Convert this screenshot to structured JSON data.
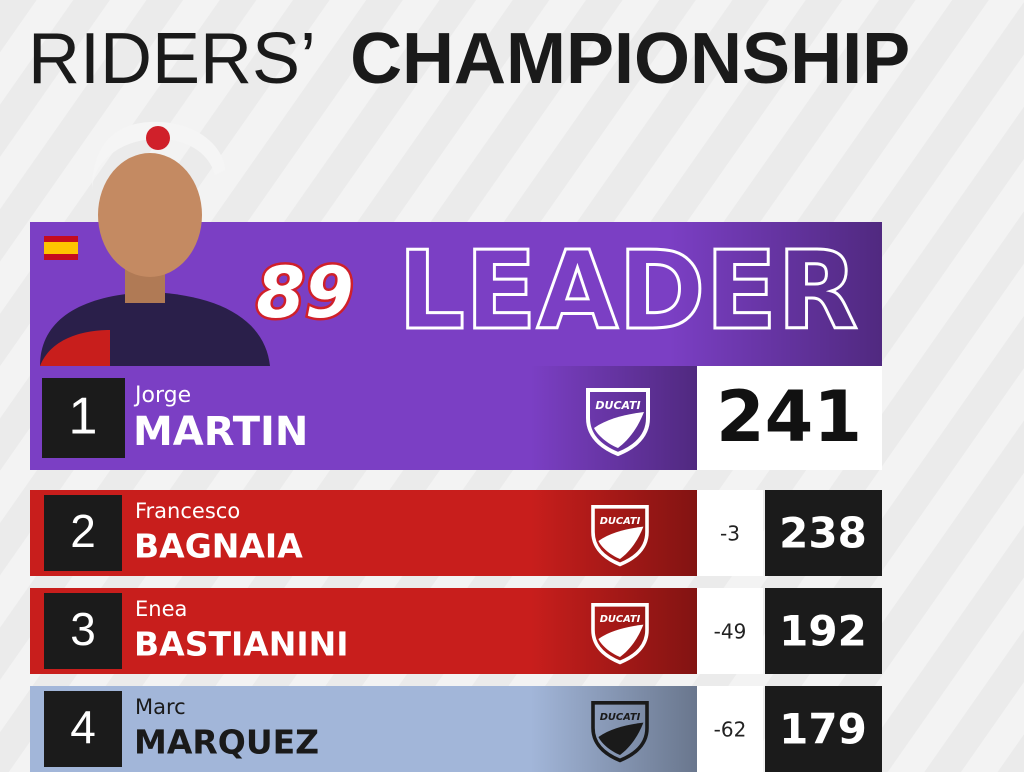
{
  "header": {
    "title_light": "RIDERS’",
    "title_bold": "CHAMPIONSHIP"
  },
  "leader": {
    "number": 89,
    "label": "LEADER",
    "color": "#7b3fc4"
  },
  "rows": [
    {
      "position": 1,
      "first_name": "Jorge",
      "last_name": "MARTIN",
      "team": "DUCATI",
      "points": 241,
      "color": "#7b3fc4"
    },
    {
      "position": 2,
      "first_name": "Francesco",
      "last_name": "BAGNAIA",
      "team": "DUCATI",
      "gap": -3,
      "points": 238,
      "color": "#c81e1c"
    },
    {
      "position": 3,
      "first_name": "Enea",
      "last_name": "BASTIANINI",
      "team": "DUCATI",
      "gap": -49,
      "points": 192,
      "color": "#c81e1c"
    },
    {
      "position": 4,
      "first_name": "Marc",
      "last_name": "MARQUEZ",
      "team": "DUCATI",
      "gap": -62,
      "points": 179,
      "color": "#a2b6d9"
    }
  ]
}
